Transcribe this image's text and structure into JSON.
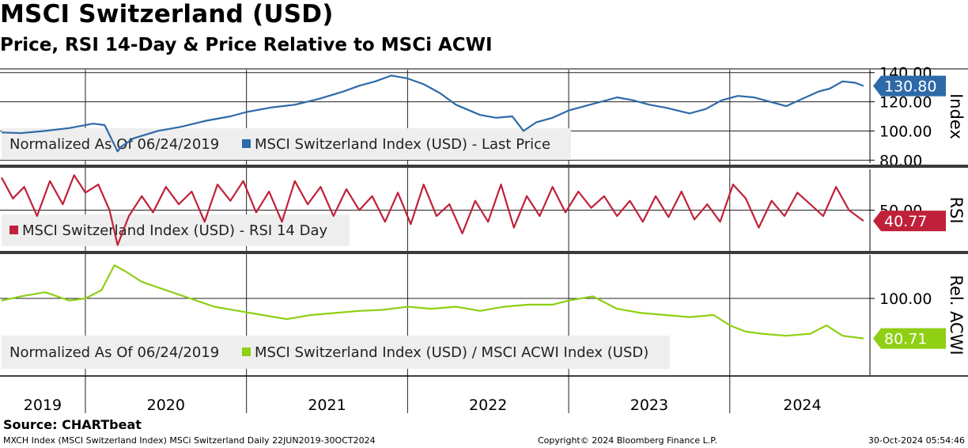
{
  "title": "MSCI Switzerland (USD)",
  "subtitle": "Price, RSI 14-Day & Price Relative to MSCi ACWI",
  "source": "Source: CHARTbeat",
  "footer": {
    "left": "MXCH Index (MSCI Switzerland Index) MSCi Switzerland  Daily 22JUN2019-30OCT2024",
    "middle": "Copyright© 2024 Bloomberg Finance L.P.",
    "right": "30-Oct-2024 05:54:46"
  },
  "colors": {
    "price": "#2e6aa8",
    "rsi": "#c0213a",
    "relative": "#8fcf14",
    "legend_bg": "#eeeeee"
  },
  "chart_data": [
    {
      "type": "line",
      "panel": "price",
      "axis_title": "Index",
      "ylim": [
        78,
        142
      ],
      "yticks": [
        {
          "value": 140,
          "label": "140.00"
        },
        {
          "value": 120,
          "label": "120.00"
        },
        {
          "value": 100,
          "label": "100.00"
        },
        {
          "value": 80,
          "label": "80.00"
        }
      ],
      "legend": {
        "note": "Normalized As Of 06/24/2019",
        "series_label": "MSCI Switzerland Index (USD) - Last Price"
      },
      "last_value_label": "130.80",
      "series": [
        {
          "name": "MSCI Switzerland Index (USD) - Last Price",
          "x": [
            2019.48,
            2019.6,
            2019.75,
            2019.9,
            2020.05,
            2020.12,
            2020.2,
            2020.22,
            2020.3,
            2020.45,
            2020.6,
            2020.75,
            2020.9,
            2021.0,
            2021.15,
            2021.3,
            2021.45,
            2021.6,
            2021.7,
            2021.8,
            2021.9,
            2022.0,
            2022.1,
            2022.2,
            2022.3,
            2022.45,
            2022.55,
            2022.65,
            2022.72,
            2022.8,
            2022.9,
            2023.0,
            2023.1,
            2023.2,
            2023.3,
            2023.4,
            2023.5,
            2023.6,
            2023.75,
            2023.85,
            2023.95,
            2024.05,
            2024.15,
            2024.25,
            2024.35,
            2024.45,
            2024.55,
            2024.62,
            2024.7,
            2024.78,
            2024.83
          ],
          "values": [
            99,
            98.5,
            100,
            102,
            105,
            104,
            86,
            89,
            95,
            100,
            103,
            107,
            110,
            113,
            116,
            118,
            122,
            127,
            131,
            134,
            138,
            136,
            132,
            126,
            118,
            111,
            109,
            110,
            100,
            106,
            109,
            114,
            117,
            120,
            123,
            121,
            118,
            116,
            112,
            115,
            121,
            124,
            123,
            120,
            117,
            122,
            127,
            129,
            134,
            133,
            130.8
          ]
        }
      ]
    },
    {
      "type": "line",
      "panel": "rsi",
      "axis_title": "RSI",
      "ylim": [
        15,
        85
      ],
      "yticks": [
        {
          "value": 50,
          "label": "50.00"
        }
      ],
      "legend": {
        "series_label": "MSCI Switzerland Index (USD) - RSI 14 Day"
      },
      "last_value_label": "40.77",
      "series": [
        {
          "name": "MSCI Switzerland Index (USD) - RSI 14 Day",
          "x": [
            2019.48,
            2019.55,
            2019.62,
            2019.7,
            2019.78,
            2019.86,
            2019.93,
            2020.0,
            2020.08,
            2020.15,
            2020.2,
            2020.27,
            2020.35,
            2020.42,
            2020.5,
            2020.58,
            2020.66,
            2020.74,
            2020.82,
            2020.9,
            2020.98,
            2021.06,
            2021.14,
            2021.22,
            2021.3,
            2021.38,
            2021.46,
            2021.54,
            2021.62,
            2021.7,
            2021.78,
            2021.86,
            2021.94,
            2022.02,
            2022.1,
            2022.18,
            2022.26,
            2022.34,
            2022.42,
            2022.5,
            2022.58,
            2022.66,
            2022.74,
            2022.82,
            2022.9,
            2022.98,
            2023.06,
            2023.14,
            2023.22,
            2023.3,
            2023.38,
            2023.46,
            2023.54,
            2023.62,
            2023.7,
            2023.78,
            2023.86,
            2023.94,
            2024.02,
            2024.1,
            2024.18,
            2024.26,
            2024.34,
            2024.42,
            2024.5,
            2024.58,
            2024.66,
            2024.74,
            2024.83
          ],
          "values": [
            78,
            60,
            70,
            45,
            75,
            55,
            80,
            65,
            72,
            50,
            20,
            45,
            62,
            48,
            70,
            55,
            66,
            40,
            72,
            58,
            75,
            48,
            66,
            40,
            75,
            55,
            70,
            45,
            68,
            50,
            62,
            40,
            65,
            38,
            72,
            45,
            55,
            30,
            58,
            40,
            72,
            35,
            62,
            45,
            70,
            48,
            66,
            52,
            62,
            45,
            58,
            40,
            62,
            44,
            66,
            42,
            55,
            40,
            72,
            60,
            35,
            58,
            45,
            65,
            55,
            45,
            70,
            50,
            40.77
          ]
        }
      ]
    },
    {
      "type": "line",
      "panel": "relative",
      "axis_title": "Rel. ACWI",
      "ylim": [
        63,
        121
      ],
      "yticks": [
        {
          "value": 100,
          "label": "100.00"
        }
      ],
      "legend": {
        "note": "Normalized As Of 06/24/2019",
        "series_label": "MSCI Switzerland Index (USD) / MSCI ACWI Index (USD)"
      },
      "last_value_label": "80.71",
      "series": [
        {
          "name": "MSCI Switzerland Index (USD) / MSCI ACWI Index (USD)",
          "x": [
            2019.48,
            2019.6,
            2019.75,
            2019.9,
            2020.0,
            2020.1,
            2020.18,
            2020.25,
            2020.35,
            2020.5,
            2020.65,
            2020.8,
            2020.95,
            2021.1,
            2021.25,
            2021.4,
            2021.55,
            2021.7,
            2021.85,
            2022.0,
            2022.15,
            2022.3,
            2022.45,
            2022.6,
            2022.75,
            2022.9,
            2023.0,
            2023.15,
            2023.3,
            2023.45,
            2023.6,
            2023.75,
            2023.9,
            2024.0,
            2024.1,
            2024.2,
            2024.35,
            2024.5,
            2024.6,
            2024.7,
            2024.83
          ],
          "values": [
            99,
            101,
            103,
            99,
            100,
            104,
            116,
            113,
            108,
            104,
            100,
            96,
            94,
            92,
            90,
            92,
            93,
            94,
            94.5,
            96,
            95,
            96,
            94,
            96,
            97,
            97,
            99,
            101,
            95,
            93,
            92,
            91,
            92,
            87,
            84,
            83,
            82,
            83,
            87,
            82,
            80.71
          ]
        }
      ]
    }
  ],
  "x_axis": {
    "years": [
      "2019",
      "2020",
      "2021",
      "2022",
      "2023",
      "2024"
    ]
  }
}
